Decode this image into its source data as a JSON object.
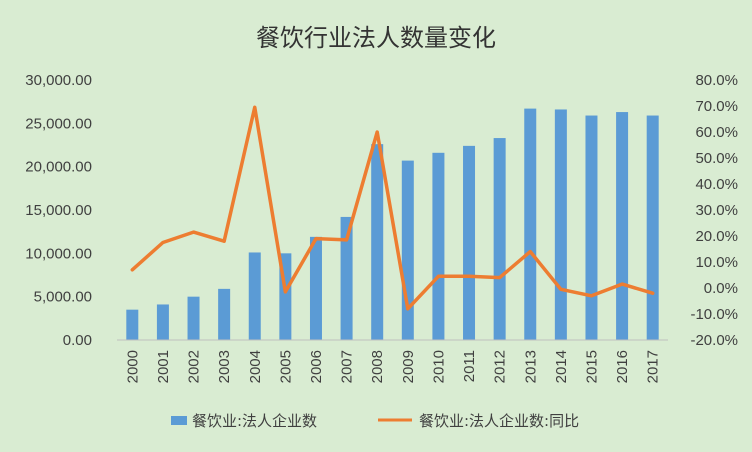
{
  "chart_data": {
    "type": "bar",
    "title": "餐饮行业法人数量变化",
    "categories": [
      "2000",
      "2001",
      "2002",
      "2003",
      "2004",
      "2005",
      "2006",
      "2007",
      "2008",
      "2009",
      "2010",
      "2011",
      "2012",
      "2013",
      "2014",
      "2015",
      "2016",
      "2017"
    ],
    "series": [
      {
        "name": "餐饮业:法人企业数",
        "type": "bar",
        "axis": "left",
        "color": "#5b9bd5",
        "values": [
          3500,
          4100,
          5000,
          5900,
          10100,
          10000,
          11900,
          14200,
          22600,
          20700,
          21600,
          22400,
          23300,
          26700,
          26600,
          25900,
          26300,
          25900
        ]
      },
      {
        "name": "餐饮业:法人企业数:同比",
        "type": "line",
        "axis": "right",
        "color": "#ed7d31",
        "values": [
          7.0,
          17.5,
          21.5,
          18.0,
          69.5,
          -1.5,
          19.0,
          18.5,
          60.0,
          -8.0,
          4.5,
          4.5,
          4.0,
          14.0,
          -0.5,
          -3.0,
          1.5,
          -2.0
        ]
      }
    ],
    "y_left": {
      "min": 0,
      "max": 30000,
      "ticks": [
        0,
        5000,
        10000,
        15000,
        20000,
        25000,
        30000
      ],
      "tick_labels": [
        "0.00",
        "5,000.00",
        "10,000.00",
        "15,000.00",
        "20,000.00",
        "25,000.00",
        "30,000.00"
      ]
    },
    "y_right": {
      "min": -20,
      "max": 80,
      "ticks": [
        -20,
        -10,
        0,
        10,
        20,
        30,
        40,
        50,
        60,
        70,
        80
      ],
      "tick_labels": [
        "-20.0%",
        "-10.0%",
        "0.0%",
        "10.0%",
        "20.0%",
        "30.0%",
        "40.0%",
        "50.0%",
        "60.0%",
        "70.0%",
        "80.0%"
      ]
    },
    "grid": false,
    "legend_position": "bottom"
  },
  "colors": {
    "background": "#d9ecd2"
  }
}
